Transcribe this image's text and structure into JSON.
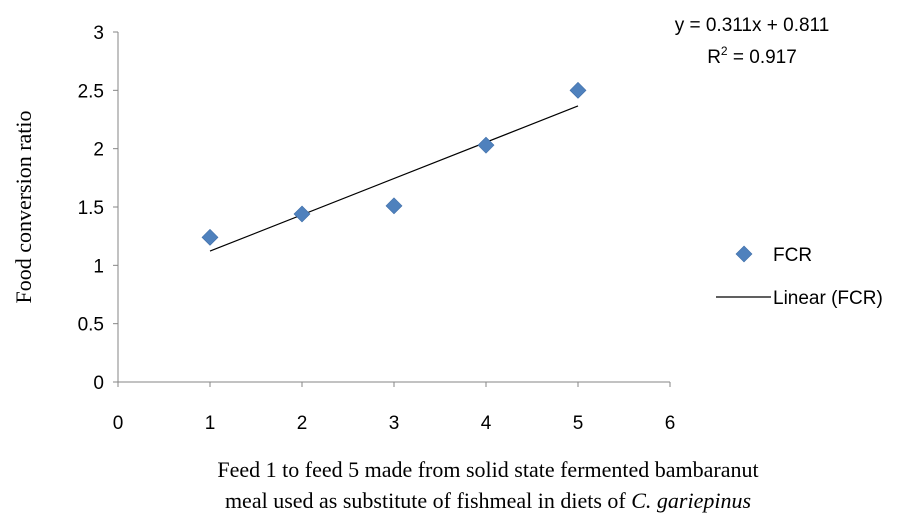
{
  "chart_data": {
    "type": "scatter",
    "xlim": [
      0,
      6
    ],
    "ylim": [
      0,
      3
    ],
    "x_ticks": [
      "0",
      "1",
      "2",
      "3",
      "4",
      "5",
      "6"
    ],
    "y_ticks": [
      "0",
      "0.5",
      "1",
      "1.5",
      "2",
      "2.5",
      "3"
    ],
    "ylabel": "Food conversion ratio",
    "xlabel_line1": "Feed 1 to feed 5 made from solid state fermented bambaranut",
    "xlabel_line2_prefix": "meal used as substitute of fishmeal in diets of ",
    "xlabel_line2_species": "C. gariepinus",
    "grid": false,
    "legend_placement": "right",
    "series": [
      {
        "name": "FCR",
        "marker": "diamond",
        "color": "#4F81BD",
        "x": [
          1,
          2,
          3,
          4,
          5
        ],
        "y": [
          1.24,
          1.44,
          1.51,
          2.03,
          2.5
        ]
      }
    ],
    "trendline": {
      "name": "Linear (FCR)",
      "color": "#000000",
      "slope": 0.311,
      "intercept": 0.811,
      "x_range": [
        1,
        5
      ],
      "equation": "y = 0.311x + 0.811",
      "r_squared_prefix": "R",
      "r_squared_power": "2",
      "r_squared_value": " = 0.917"
    }
  }
}
